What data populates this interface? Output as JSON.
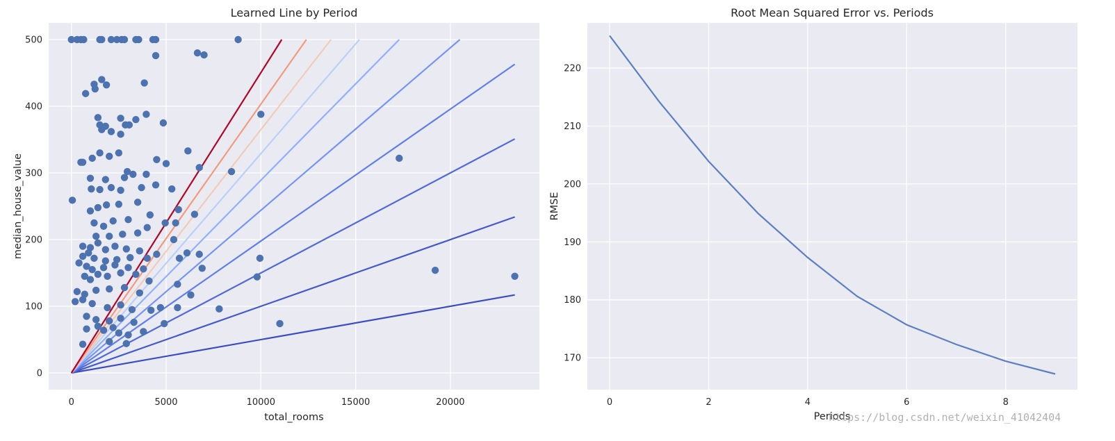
{
  "colors": {
    "axes_bg": "#eaeaf2",
    "grid": "#ffffff",
    "text": "#262626",
    "scatter": "#4c72b0",
    "rmse_line": "#5b7fc0",
    "period_lines": [
      "#3b4cc0",
      "#4358cb",
      "#4f69d9",
      "#5f7fe8",
      "#7396f5",
      "#8db0fe",
      "#b9d0f9",
      "#f2cbb7",
      "#f49a7b",
      "#b40426"
    ]
  },
  "watermark": "https://blog.csdn.net/weixin_41042404",
  "chart_data": [
    {
      "type": "scatter",
      "title": "Learned Line by Period",
      "xlabel": "total_rooms",
      "ylabel": "median_house_value",
      "xlim": [
        -1200,
        24700
      ],
      "ylim": [
        -25,
        525
      ],
      "xticks": [
        0,
        5000,
        10000,
        15000,
        20000
      ],
      "yticks": [
        0,
        100,
        200,
        300,
        400,
        500
      ],
      "grid": true,
      "points": [
        [
          0,
          500
        ],
        [
          300,
          500
        ],
        [
          500,
          500
        ],
        [
          650,
          500
        ],
        [
          1500,
          500
        ],
        [
          1600,
          500
        ],
        [
          2100,
          500
        ],
        [
          2400,
          500
        ],
        [
          2650,
          500
        ],
        [
          2800,
          500
        ],
        [
          3400,
          500
        ],
        [
          3550,
          500
        ],
        [
          4300,
          500
        ],
        [
          4450,
          500
        ],
        [
          8800,
          500
        ],
        [
          4450,
          476
        ],
        [
          6650,
          480
        ],
        [
          7000,
          477
        ],
        [
          750,
          419
        ],
        [
          1200,
          433
        ],
        [
          1250,
          426
        ],
        [
          1600,
          440
        ],
        [
          1850,
          432
        ],
        [
          3850,
          435
        ],
        [
          10000,
          388
        ],
        [
          3950,
          388
        ],
        [
          1400,
          383
        ],
        [
          2600,
          382
        ],
        [
          3400,
          380
        ],
        [
          4850,
          375
        ],
        [
          1500,
          372
        ],
        [
          1800,
          370
        ],
        [
          2850,
          372
        ],
        [
          3050,
          372
        ],
        [
          1600,
          365
        ],
        [
          2100,
          362
        ],
        [
          2600,
          358
        ],
        [
          500,
          316
        ],
        [
          600,
          316
        ],
        [
          1100,
          322
        ],
        [
          1500,
          330
        ],
        [
          2000,
          325
        ],
        [
          2500,
          330
        ],
        [
          4500,
          320
        ],
        [
          5000,
          314
        ],
        [
          6150,
          333
        ],
        [
          8450,
          302
        ],
        [
          17300,
          322
        ],
        [
          6750,
          308
        ],
        [
          2950,
          302
        ],
        [
          3250,
          298
        ],
        [
          3950,
          298
        ],
        [
          1000,
          292
        ],
        [
          1800,
          290
        ],
        [
          2800,
          293
        ],
        [
          1050,
          276
        ],
        [
          1500,
          275
        ],
        [
          2100,
          278
        ],
        [
          2600,
          274
        ],
        [
          3700,
          278
        ],
        [
          4450,
          282
        ],
        [
          5300,
          276
        ],
        [
          50,
          259
        ],
        [
          1000,
          243
        ],
        [
          1400,
          248
        ],
        [
          1850,
          252
        ],
        [
          2500,
          253
        ],
        [
          3500,
          256
        ],
        [
          4150,
          237
        ],
        [
          5650,
          245
        ],
        [
          6500,
          238
        ],
        [
          1200,
          225
        ],
        [
          1700,
          220
        ],
        [
          2200,
          228
        ],
        [
          3000,
          230
        ],
        [
          4000,
          218
        ],
        [
          4950,
          225
        ],
        [
          5500,
          225
        ],
        [
          1300,
          205
        ],
        [
          2000,
          205
        ],
        [
          2700,
          208
        ],
        [
          3500,
          210
        ],
        [
          5400,
          200
        ],
        [
          600,
          190
        ],
        [
          1000,
          188
        ],
        [
          1400,
          195
        ],
        [
          1800,
          185
        ],
        [
          2300,
          190
        ],
        [
          2900,
          186
        ],
        [
          3600,
          183
        ],
        [
          600,
          175
        ],
        [
          900,
          180
        ],
        [
          1200,
          172
        ],
        [
          1800,
          168
        ],
        [
          2400,
          170
        ],
        [
          3100,
          173
        ],
        [
          4000,
          172
        ],
        [
          4500,
          178
        ],
        [
          5700,
          172
        ],
        [
          6100,
          180
        ],
        [
          6750,
          178
        ],
        [
          9950,
          172
        ],
        [
          400,
          165
        ],
        [
          800,
          160
        ],
        [
          1100,
          155
        ],
        [
          1700,
          158
        ],
        [
          2300,
          162
        ],
        [
          3000,
          158
        ],
        [
          3800,
          156
        ],
        [
          6900,
          157
        ],
        [
          700,
          145
        ],
        [
          1000,
          140
        ],
        [
          1400,
          148
        ],
        [
          1900,
          145
        ],
        [
          2600,
          150
        ],
        [
          3400,
          148
        ],
        [
          4100,
          138
        ],
        [
          9800,
          144
        ],
        [
          19200,
          154
        ],
        [
          23400,
          145
        ],
        [
          300,
          122
        ],
        [
          700,
          118
        ],
        [
          1300,
          124
        ],
        [
          2000,
          126
        ],
        [
          2800,
          128
        ],
        [
          3600,
          120
        ],
        [
          5600,
          133
        ],
        [
          6300,
          117
        ],
        [
          200,
          107
        ],
        [
          600,
          110
        ],
        [
          1100,
          104
        ],
        [
          1900,
          98
        ],
        [
          2600,
          102
        ],
        [
          3200,
          95
        ],
        [
          4200,
          94
        ],
        [
          4700,
          98
        ],
        [
          5600,
          98
        ],
        [
          7800,
          96
        ],
        [
          11000,
          74
        ],
        [
          800,
          85
        ],
        [
          1300,
          80
        ],
        [
          2000,
          78
        ],
        [
          2600,
          82
        ],
        [
          3300,
          76
        ],
        [
          4900,
          74
        ],
        [
          1700,
          64
        ],
        [
          2500,
          60
        ],
        [
          3000,
          57
        ],
        [
          3800,
          62
        ],
        [
          600,
          43
        ],
        [
          2000,
          47
        ],
        [
          2900,
          44
        ],
        [
          800,
          66
        ],
        [
          1400,
          70
        ],
        [
          2200,
          68
        ]
      ],
      "lines": [
        {
          "x_end": 23400,
          "y_end": 117
        },
        {
          "x_end": 23400,
          "y_end": 234
        },
        {
          "x_end": 23400,
          "y_end": 351
        },
        {
          "x_end": 23400,
          "y_end": 463
        },
        {
          "x_end": 20500,
          "y_end": 500
        },
        {
          "x_end": 17300,
          "y_end": 500
        },
        {
          "x_end": 15200,
          "y_end": 500
        },
        {
          "x_end": 13700,
          "y_end": 500
        },
        {
          "x_end": 12400,
          "y_end": 500
        },
        {
          "x_end": 11100,
          "y_end": 500
        }
      ]
    },
    {
      "type": "line",
      "title": "Root Mean Squared Error vs. Periods",
      "xlabel": "Periods",
      "ylabel": "RMSE",
      "xlim": [
        -0.45,
        9.45
      ],
      "ylim": [
        164.5,
        227.8
      ],
      "xticks": [
        0,
        2,
        4,
        6,
        8
      ],
      "yticks": [
        170,
        180,
        190,
        200,
        210,
        220
      ],
      "grid": true,
      "x": [
        0,
        1,
        2,
        3,
        4,
        5,
        6,
        7,
        8,
        9
      ],
      "values": [
        225.6,
        214.2,
        203.9,
        194.9,
        187.3,
        180.6,
        175.7,
        172.3,
        169.4,
        167.2
      ]
    }
  ]
}
